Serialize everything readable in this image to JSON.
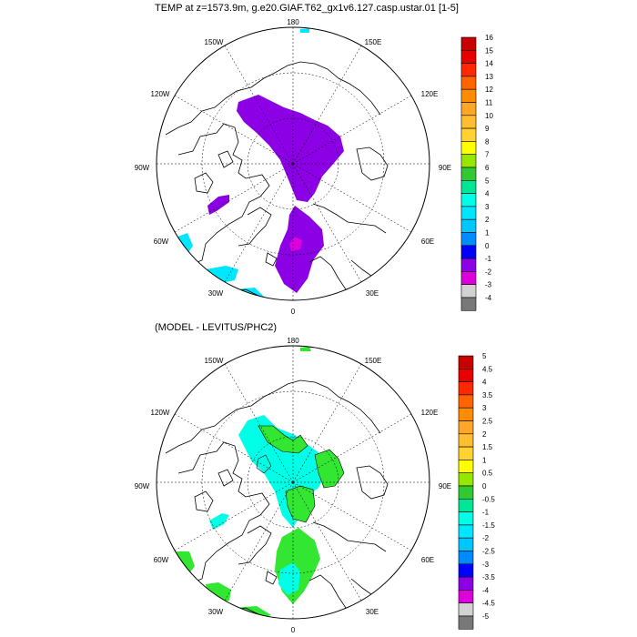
{
  "top_panel": {
    "title": "TEMP at z=1573.9m, g.e20.GIAF.T62_gx1v6.127.casp.ustar.01 [1-5]",
    "lon_labels": [
      "180",
      "150E",
      "120E",
      "90E",
      "60E",
      "30E",
      "0",
      "30W",
      "60W",
      "90W",
      "120W",
      "150W"
    ],
    "colorbar_labels": [
      "16",
      "15",
      "14",
      "13",
      "12",
      "11",
      "10",
      "9",
      "8",
      "7",
      "6",
      "5",
      "4",
      "3",
      "2",
      "1",
      "0",
      "-1",
      "-2",
      "-3",
      "-4"
    ],
    "colorbar_colors": [
      "#c80000",
      "#e60000",
      "#ff2800",
      "#ff6400",
      "#ff8c00",
      "#ffa528",
      "#ffbe32",
      "#ffd232",
      "#ffff00",
      "#96e600",
      "#32c832",
      "#00e696",
      "#00ffe6",
      "#00e6ff",
      "#00c8ff",
      "#008cff",
      "#0000ff",
      "#8c00e6",
      "#dc00dc",
      "#d2d2d2",
      "#787878"
    ]
  },
  "bottom_panel": {
    "title": "(MODEL - LEVITUS/PHC2)",
    "lon_labels": [
      "180",
      "150E",
      "120E",
      "90E",
      "60E",
      "30E",
      "0",
      "30W",
      "60W",
      "90W",
      "120W",
      "150W"
    ],
    "colorbar_labels": [
      "5",
      "4.5",
      "4",
      "3.5",
      "3",
      "2.5",
      "2",
      "1.5",
      "1",
      "0.5",
      "0",
      "-0.5",
      "-1",
      "-1.5",
      "-2",
      "-2.5",
      "-3",
      "-3.5",
      "-4",
      "-4.5",
      "-5"
    ],
    "colorbar_colors": [
      "#c80000",
      "#e60000",
      "#ff2800",
      "#ff6400",
      "#ff8c00",
      "#ffa528",
      "#ffbe32",
      "#ffd232",
      "#ffff00",
      "#96e600",
      "#32c832",
      "#00e696",
      "#00ffe6",
      "#00e6ff",
      "#00c8ff",
      "#008cff",
      "#0000ff",
      "#8c00e6",
      "#dc00dc",
      "#d2d2d2",
      "#787878"
    ]
  },
  "colors": {
    "top_field": "#8c00e6",
    "top_core": "#dc00dc",
    "top_warm": "#00e6ff",
    "bottom_field": "#00ffe6",
    "bottom_green": "#32e632",
    "land_line": "#000000",
    "grid_line": "#000000"
  }
}
